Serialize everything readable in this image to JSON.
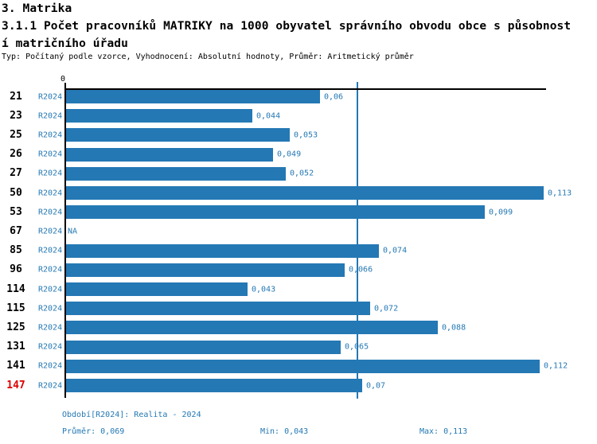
{
  "header": {
    "section_title": "3. Matrika",
    "title_lines": [
      "3.1.1 Počet pracovníků MATRIKY na 1000 obyvatel správního obvodu obce s působnost",
      "í matričního úřadu"
    ],
    "subtitle": "Typ: Počítaný podle vzorce, Vyhodnocení: Absolutní hodnoty, Průměr: Aritmetický průměr"
  },
  "colors": {
    "bar_blue": "#2478b4",
    "text_blue": "#2478b4",
    "highlight_red": "#dc0000",
    "axis_black": "#000000",
    "background": "#ffffff"
  },
  "chart_data": {
    "type": "bar",
    "orientation": "horizontal",
    "title": "3.1.1 Počet pracovníků MATRIKY na 1000 obyvatel správního obvodu obce s působností matričního úřadu",
    "zero_tick_label": "0",
    "xlim": [
      0,
      0.1137
    ],
    "grid": false,
    "legend_position": "none",
    "series_label": "R2024",
    "average_line_value": 0.069,
    "stats": {
      "average": 0.069,
      "min": 0.043,
      "max": 0.113
    },
    "rows": [
      {
        "id": "21",
        "period": "R2024",
        "value": 0.06,
        "label": "0,06",
        "highlighted": false
      },
      {
        "id": "23",
        "period": "R2024",
        "value": 0.044,
        "label": "0,044",
        "highlighted": false
      },
      {
        "id": "25",
        "period": "R2024",
        "value": 0.053,
        "label": "0,053",
        "highlighted": false
      },
      {
        "id": "26",
        "period": "R2024",
        "value": 0.049,
        "label": "0,049",
        "highlighted": false
      },
      {
        "id": "27",
        "period": "R2024",
        "value": 0.052,
        "label": "0,052",
        "highlighted": false
      },
      {
        "id": "50",
        "period": "R2024",
        "value": 0.113,
        "label": "0,113",
        "highlighted": false
      },
      {
        "id": "53",
        "period": "R2024",
        "value": 0.099,
        "label": "0,099",
        "highlighted": false
      },
      {
        "id": "67",
        "period": "R2024",
        "value": null,
        "label": "NA",
        "highlighted": false
      },
      {
        "id": "85",
        "period": "R2024",
        "value": 0.074,
        "label": "0,074",
        "highlighted": false
      },
      {
        "id": "96",
        "period": "R2024",
        "value": 0.066,
        "label": "0,066",
        "highlighted": false
      },
      {
        "id": "114",
        "period": "R2024",
        "value": 0.043,
        "label": "0,043",
        "highlighted": false
      },
      {
        "id": "115",
        "period": "R2024",
        "value": 0.072,
        "label": "0,072",
        "highlighted": false
      },
      {
        "id": "125",
        "period": "R2024",
        "value": 0.088,
        "label": "0,088",
        "highlighted": false
      },
      {
        "id": "131",
        "period": "R2024",
        "value": 0.065,
        "label": "0,065",
        "highlighted": false
      },
      {
        "id": "141",
        "period": "R2024",
        "value": 0.112,
        "label": "0,112",
        "highlighted": false
      },
      {
        "id": "147",
        "period": "R2024",
        "value": 0.07,
        "label": "0,07",
        "highlighted": true
      }
    ]
  },
  "footer": {
    "period_label": "Období[R2024]: Realita - 2024",
    "average_label": "Průměr: 0,069",
    "min_label": "Min: 0,043",
    "max_label": "Max: 0,113"
  }
}
